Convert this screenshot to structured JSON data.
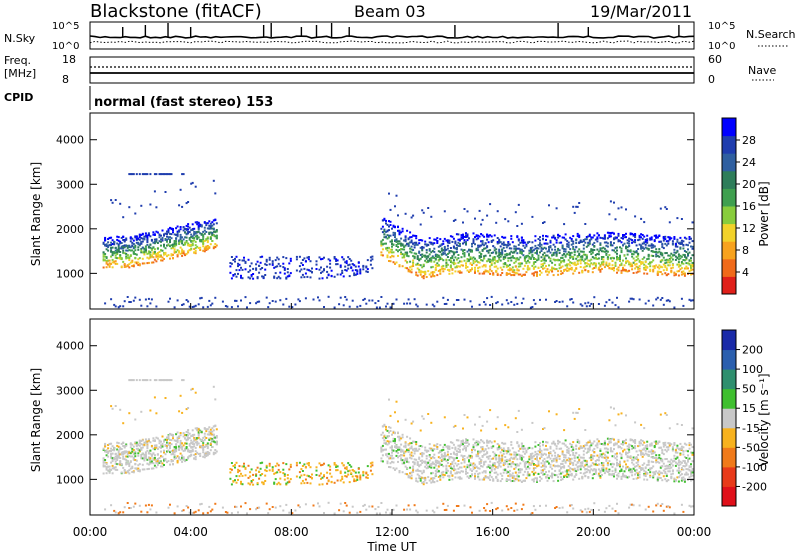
{
  "header": {
    "site": "Blackstone (fitACF)",
    "beam": "Beam 03",
    "date": "19/Mar/2011"
  },
  "strips": {
    "nsky": {
      "label": "N.Sky",
      "ticks": [
        "10^5",
        "10^0"
      ]
    },
    "nsearch": {
      "label": "N.Search",
      "ticks": [
        "10^5",
        "10^0"
      ]
    },
    "freq": {
      "label_top": "Freq.",
      "label_bottom": "[MHz]",
      "ticks": [
        "18",
        "8"
      ]
    },
    "nave": {
      "label": "Nave",
      "ticks": [
        "60",
        "0"
      ]
    },
    "cpid": {
      "label": "CPID",
      "text": "normal (fast stereo) 153"
    }
  },
  "chart_data": [
    {
      "type": "heatmap",
      "name": "power",
      "ylabel": "Slant Range [km]",
      "xlabel": "",
      "ylim": [
        200,
        4600
      ],
      "yticks": [
        "4000",
        "3000",
        "2000",
        "1000"
      ],
      "colorbar": {
        "label": "Power [dB]",
        "ticks": [
          "28",
          "24",
          "20",
          "16",
          "12",
          "8",
          "4"
        ],
        "colors": [
          "#0000ff",
          "#1f3dae",
          "#2f5fa0",
          "#2e7d5a",
          "#3f9f4f",
          "#88cc3c",
          "#f2d22a",
          "#f7a21e",
          "#f06a1a",
          "#e0201a"
        ]
      }
    },
    {
      "type": "heatmap",
      "name": "velocity",
      "ylabel": "Slant Range [km]",
      "xlabel": "Time UT",
      "ylim": [
        200,
        4600
      ],
      "yticks": [
        "4000",
        "3000",
        "2000",
        "1000"
      ],
      "xticks": [
        "00:00",
        "04:00",
        "08:00",
        "12:00",
        "16:00",
        "20:00",
        "00:00"
      ],
      "colorbar": {
        "label": "Velocity [m s⁻¹]",
        "ticks": [
          "200",
          "100",
          "50",
          "15",
          "-15",
          "-50",
          "-100",
          "-200"
        ],
        "colors": [
          "#1a2aa8",
          "#2b5fae",
          "#2f8f6e",
          "#3fbf2f",
          "#c8c8c8",
          "#f7b21e",
          "#f07a1a",
          "#e83a1a",
          "#e0101a"
        ]
      }
    }
  ]
}
